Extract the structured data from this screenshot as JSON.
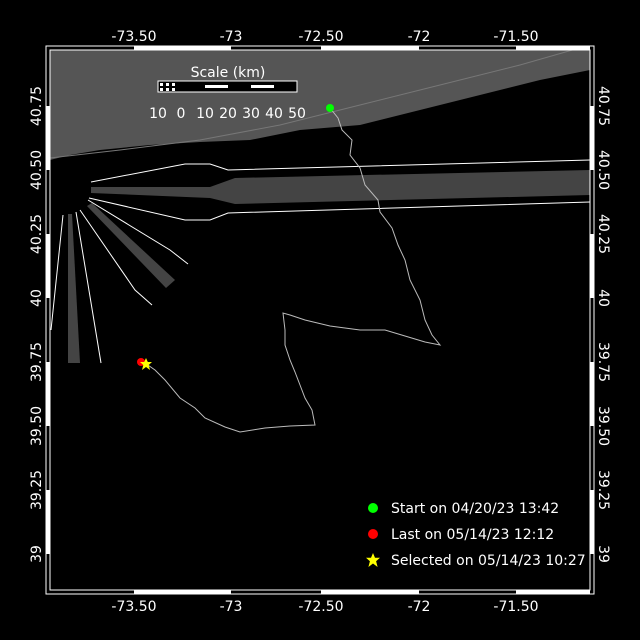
{
  "map": {
    "lon_ticks": [
      "-73.50",
      "-73",
      "-72.50",
      "-72",
      "-71.50"
    ],
    "lat_ticks": [
      "40.75",
      "40.50",
      "40.25",
      "40",
      "39.75",
      "39.50",
      "39.25",
      "39"
    ],
    "land_color": "#555555",
    "track_color": "#bbbbbb"
  },
  "scale": {
    "title": "Scale (km)",
    "labels": [
      "10",
      "0",
      "10",
      "20",
      "30",
      "40",
      "50"
    ]
  },
  "legend": {
    "items": [
      {
        "label": "Start on 04/20/23 13:42",
        "marker": "circle",
        "color": "#00ff00"
      },
      {
        "label": "Last on 05/14/23 12:12",
        "marker": "circle",
        "color": "#ff0000"
      },
      {
        "label": "Selected on 05/14/23 10:27",
        "marker": "star",
        "color": "#ffff00"
      }
    ]
  }
}
